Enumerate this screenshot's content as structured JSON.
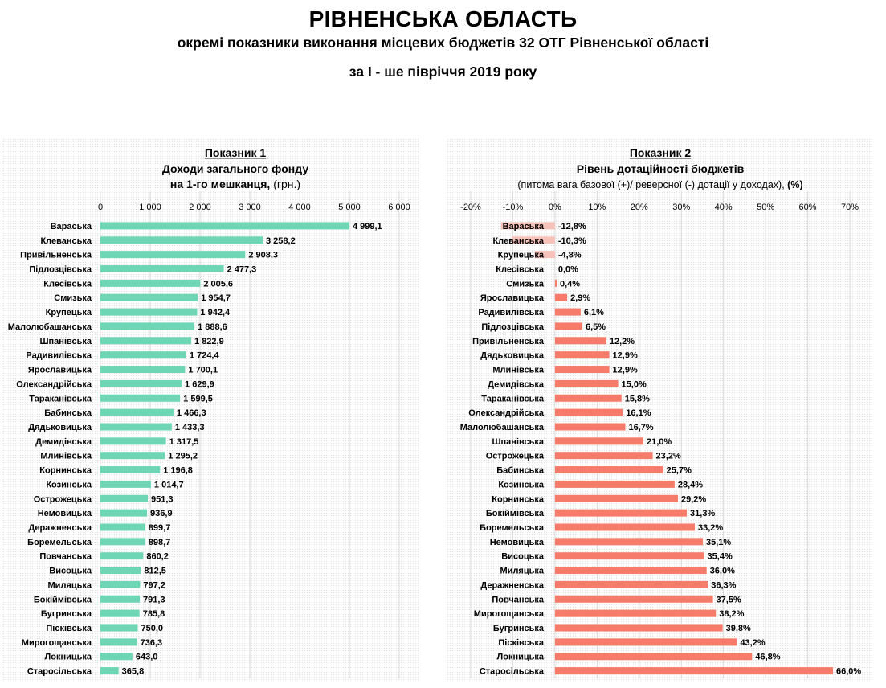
{
  "header": {
    "title": "РІВНЕНСЬКА ОБЛАСТЬ",
    "subtitle": "окремі показники виконання місцевих бюджетів 32 ОТГ Рівненської області",
    "period": "за І - ше півріччя 2019 року"
  },
  "colors": {
    "green_bar": "#6fd6b5",
    "red_bar": "#f77b6a",
    "red_bar_negative": "#f7c2b9",
    "gridline": "#d9d9d9"
  },
  "chart_data": [
    {
      "type": "bar",
      "orientation": "horizontal",
      "panel": "Показник 1",
      "title": "Доходи загального фонду",
      "subtitle_bold": "на 1-го мешканця,",
      "subtitle_normal": " (грн.)",
      "xlim": [
        0,
        6000
      ],
      "ticks": [
        0,
        1000,
        2000,
        3000,
        4000,
        5000,
        6000
      ],
      "tick_labels": [
        "0",
        "1 000",
        "2 000",
        "3 000",
        "4 000",
        "5 000",
        "6 000"
      ],
      "grid": true,
      "categories": [
        "Варaська",
        "Клеванська",
        "Привільненська",
        "Підлозцівська",
        "Клесівська",
        "Смизька",
        "Крупецька",
        "Малолюбашанська",
        "Шпанівська",
        "Радивилівська",
        "Ярославицька",
        "Олександрійська",
        "Тараканівська",
        "Бабинська",
        "Дядьковицька",
        "Демидівська",
        "Млинівська",
        "Корнинська",
        "Козинська",
        "Острожецька",
        "Немовицька",
        "Деражненська",
        "Боремельська",
        "Повчанська",
        "Висоцька",
        "Миляцька",
        "Бокіймівська",
        "Бугринська",
        "Пісківська",
        "Мирогощанська",
        "Локницька",
        "Старосільська"
      ],
      "values": [
        4999.1,
        3258.2,
        2908.3,
        2477.3,
        2005.6,
        1954.7,
        1942.4,
        1888.6,
        1822.9,
        1724.4,
        1700.1,
        1629.9,
        1599.5,
        1466.3,
        1433.3,
        1317.5,
        1295.2,
        1196.8,
        1014.7,
        951.3,
        936.9,
        899.7,
        898.7,
        860.2,
        812.5,
        797.2,
        791.3,
        785.8,
        750.0,
        736.3,
        643.0,
        365.8
      ],
      "value_labels": [
        "4 999,1",
        "3 258,2",
        "2 908,3",
        "2 477,3",
        "2 005,6",
        "1 954,7",
        "1 942,4",
        "1 888,6",
        "1 822,9",
        "1 724,4",
        "1 700,1",
        "1 629,9",
        "1 599,5",
        "1 466,3",
        "1 433,3",
        "1 317,5",
        "1 295,2",
        "1 196,8",
        "1 014,7",
        "951,3",
        "936,9",
        "899,7",
        "898,7",
        "860,2",
        "812,5",
        "797,2",
        "791,3",
        "785,8",
        "750,0",
        "736,3",
        "643,0",
        "365,8"
      ]
    },
    {
      "type": "bar",
      "orientation": "horizontal",
      "panel": "Показник 2",
      "title": "Рівень дотаційності бюджетів",
      "subtitle_normal": "(питома вага базової (+)/ реверсної (-) дотації  у доходах),",
      "subtitle_bold": " (%)",
      "xlim": [
        -20,
        70
      ],
      "ticks": [
        -20,
        -10,
        0,
        10,
        20,
        30,
        40,
        50,
        60,
        70
      ],
      "tick_labels": [
        "-20%",
        "-10%",
        "0%",
        "10%",
        "20%",
        "30%",
        "40%",
        "50%",
        "60%",
        "70%"
      ],
      "grid": true,
      "categories": [
        "Варaська",
        "Клеванська",
        "Крупецька",
        "Клесівська",
        "Смизька",
        "Ярославицька",
        "Радивилівська",
        "Підлозцівська",
        "Привільненська",
        "Дядьковицька",
        "Млинівська",
        "Демидівська",
        "Тараканівська",
        "Олександрійська",
        "Малолюбашанська",
        "Шпанівська",
        "Острожецька",
        "Бабинська",
        "Козинська",
        "Корнинська",
        "Бокіймівська",
        "Боремельська",
        "Немовицька",
        "Висоцька",
        "Миляцька",
        "Деражненська",
        "Повчанська",
        "Мирогощанська",
        "Бугринська",
        "Пісківська",
        "Локницька",
        "Старосільська"
      ],
      "values": [
        -12.8,
        -10.3,
        -4.8,
        0.0,
        0.4,
        2.9,
        6.1,
        6.5,
        12.2,
        12.9,
        12.9,
        15.0,
        15.8,
        16.1,
        16.7,
        21.0,
        23.2,
        25.7,
        28.4,
        29.2,
        31.3,
        33.2,
        35.1,
        35.4,
        36.0,
        36.3,
        37.5,
        38.2,
        39.8,
        43.2,
        46.8,
        66.0
      ],
      "value_labels": [
        "-12,8%",
        "-10,3%",
        "-4,8%",
        "0,0%",
        "0,4%",
        "2,9%",
        "6,1%",
        "6,5%",
        "12,2%",
        "12,9%",
        "12,9%",
        "15,0%",
        "15,8%",
        "16,1%",
        "16,7%",
        "21,0%",
        "23,2%",
        "25,7%",
        "28,4%",
        "29,2%",
        "31,3%",
        "33,2%",
        "35,1%",
        "35,4%",
        "36,0%",
        "36,3%",
        "37,5%",
        "38,2%",
        "39,8%",
        "43,2%",
        "46,8%",
        "66,0%"
      ]
    }
  ]
}
